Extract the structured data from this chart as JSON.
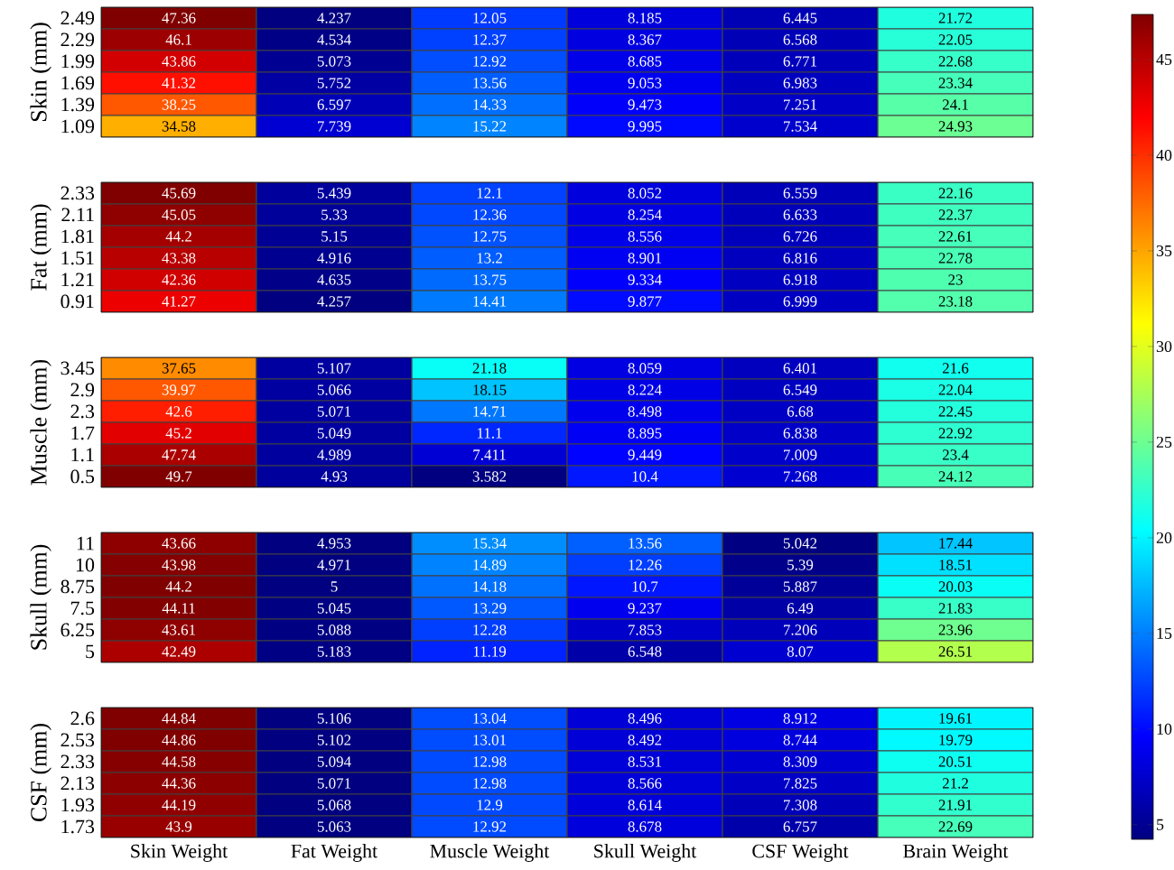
{
  "chart_data": [
    {
      "type": "heatmap",
      "ylabel": "Skin (mm)",
      "categories": [
        null,
        null,
        null,
        null,
        null,
        null
      ],
      "y_categories": [
        "2.49",
        "2.29",
        "1.99",
        "1.69",
        "1.39",
        "1.09"
      ],
      "cells": [
        [
          47.36,
          4.237,
          12.05,
          8.185,
          6.445,
          21.72
        ],
        [
          46.1,
          4.534,
          12.37,
          8.367,
          6.568,
          22.05
        ],
        [
          43.86,
          5.073,
          12.92,
          8.685,
          6.771,
          22.68
        ],
        [
          41.32,
          5.752,
          13.56,
          9.053,
          6.983,
          23.34
        ],
        [
          38.25,
          6.597,
          14.33,
          9.473,
          7.251,
          24.1
        ],
        [
          34.58,
          7.739,
          15.22,
          9.995,
          7.534,
          24.93
        ]
      ],
      "clim": [
        4.237,
        47.36
      ],
      "cticks": [
        5,
        10,
        15,
        20,
        25,
        30,
        35,
        40,
        45
      ],
      "tick_labels": "y",
      "data_labels": true
    },
    {
      "type": "heatmap",
      "ylabel": "Fat (mm)",
      "categories": [
        null,
        null,
        null,
        null,
        null,
        null
      ],
      "y_categories": [
        "2.33",
        "2.11",
        "1.81",
        "1.51",
        "1.21",
        "0.91"
      ],
      "cells": [
        [
          45.69,
          5.439,
          12.1,
          8.052,
          6.559,
          22.16
        ],
        [
          45.05,
          5.33,
          12.36,
          8.254,
          6.633,
          22.37
        ],
        [
          44.2,
          5.15,
          12.75,
          8.556,
          6.726,
          22.61
        ],
        [
          43.38,
          4.916,
          13.2,
          8.901,
          6.816,
          22.78
        ],
        [
          42.36,
          4.635,
          13.75,
          9.334,
          6.918,
          23
        ],
        [
          41.27,
          4.257,
          14.41,
          9.877,
          6.999,
          23.18
        ]
      ],
      "tick_labels": "y",
      "data_labels": true
    },
    {
      "type": "heatmap",
      "ylabel": "Muscle (mm)",
      "categories": [
        null,
        null,
        null,
        null,
        null,
        null
      ],
      "y_categories": [
        "3.45",
        "2.9",
        "2.3",
        "1.7",
        "1.1",
        "0.5"
      ],
      "cells": [
        [
          37.65,
          5.107,
          21.18,
          8.059,
          6.401,
          21.6
        ],
        [
          39.97,
          5.066,
          18.15,
          8.224,
          6.549,
          22.04
        ],
        [
          42.6,
          5.071,
          14.71,
          8.498,
          6.68,
          22.45
        ],
        [
          45.2,
          5.049,
          11.1,
          8.895,
          6.838,
          22.92
        ],
        [
          47.74,
          4.989,
          7.411,
          9.449,
          7.009,
          23.4
        ],
        [
          49.7,
          4.93,
          3.582,
          10.4,
          7.268,
          24.12
        ]
      ],
      "tick_labels": "y",
      "data_labels": true
    },
    {
      "type": "heatmap",
      "ylabel": "Skull (mm)",
      "categories": [
        null,
        null,
        null,
        null,
        null,
        null
      ],
      "y_categories": [
        "11",
        "10",
        "8.75",
        "7.5",
        "6.25",
        "5"
      ],
      "cells": [
        [
          43.66,
          4.953,
          15.34,
          13.56,
          5.042,
          17.44
        ],
        [
          43.98,
          4.971,
          14.89,
          12.26,
          5.39,
          18.51
        ],
        [
          44.2,
          5,
          14.18,
          10.7,
          5.887,
          20.03
        ],
        [
          44.11,
          5.045,
          13.29,
          9.237,
          6.49,
          21.83
        ],
        [
          43.61,
          5.088,
          12.28,
          7.853,
          7.206,
          23.96
        ],
        [
          42.49,
          5.183,
          11.19,
          6.548,
          8.07,
          26.51
        ]
      ],
      "tick_labels": "y",
      "data_labels": true
    },
    {
      "type": "heatmap",
      "ylabel": "CSF (mm)",
      "categories": [
        "Skin Weight",
        "Fat Weight",
        "Muscle Weight",
        "Skull Weight",
        "CSF Weight",
        "Brain Weight"
      ],
      "y_categories": [
        "2.6",
        "2.53",
        "2.33",
        "2.13",
        "1.93",
        "1.73"
      ],
      "cells": [
        [
          44.84,
          5.106,
          13.04,
          8.496,
          8.912,
          19.61
        ],
        [
          44.86,
          5.102,
          13.01,
          8.492,
          8.744,
          19.79
        ],
        [
          44.58,
          5.094,
          12.98,
          8.531,
          8.309,
          20.51
        ],
        [
          44.36,
          5.071,
          12.98,
          8.566,
          7.825,
          21.2
        ],
        [
          44.19,
          5.068,
          12.9,
          8.614,
          7.308,
          21.91
        ],
        [
          43.9,
          5.063,
          12.92,
          8.678,
          6.757,
          22.69
        ]
      ],
      "data_labels": true
    }
  ]
}
